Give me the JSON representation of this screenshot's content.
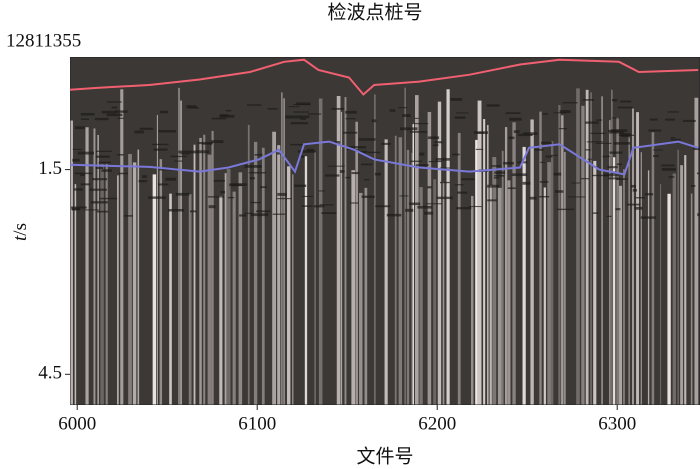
{
  "chart_data": {
    "type": "line",
    "title": "检波点桩号",
    "annotation": "12811355",
    "xlabel": "文件号",
    "ylabel": {
      "italic": "t",
      "rest": "/s"
    },
    "xlim": [
      5996,
      6346
    ],
    "ylim": [
      -0.15,
      4.95
    ],
    "y_inverted": true,
    "xticks": [
      6000,
      6100,
      6200,
      6300
    ],
    "yticks": [
      1.5,
      4.5
    ],
    "series": [
      {
        "color": "#f06070",
        "x": [
          5996,
          6012,
          6040,
          6068,
          6096,
          6115,
          6126,
          6134,
          6151,
          6159,
          6165,
          6190,
          6218,
          6246,
          6268,
          6301,
          6312,
          6345
        ],
        "values": [
          0.33,
          0.3,
          0.26,
          0.18,
          0.07,
          -0.08,
          -0.11,
          0.04,
          0.15,
          0.4,
          0.26,
          0.21,
          0.11,
          -0.04,
          -0.11,
          -0.08,
          0.07,
          0.04
        ]
      },
      {
        "color": "#7a78d8",
        "x": [
          5996,
          6040,
          6068,
          6084,
          6101,
          6112,
          6121,
          6126,
          6140,
          6154,
          6165,
          6190,
          6218,
          6246,
          6251,
          6268,
          6290,
          6304,
          6309,
          6334,
          6345
        ],
        "values": [
          1.43,
          1.46,
          1.53,
          1.47,
          1.35,
          1.21,
          1.53,
          1.13,
          1.09,
          1.21,
          1.35,
          1.47,
          1.53,
          1.47,
          1.18,
          1.13,
          1.5,
          1.57,
          1.18,
          1.09,
          1.18
        ]
      }
    ]
  }
}
